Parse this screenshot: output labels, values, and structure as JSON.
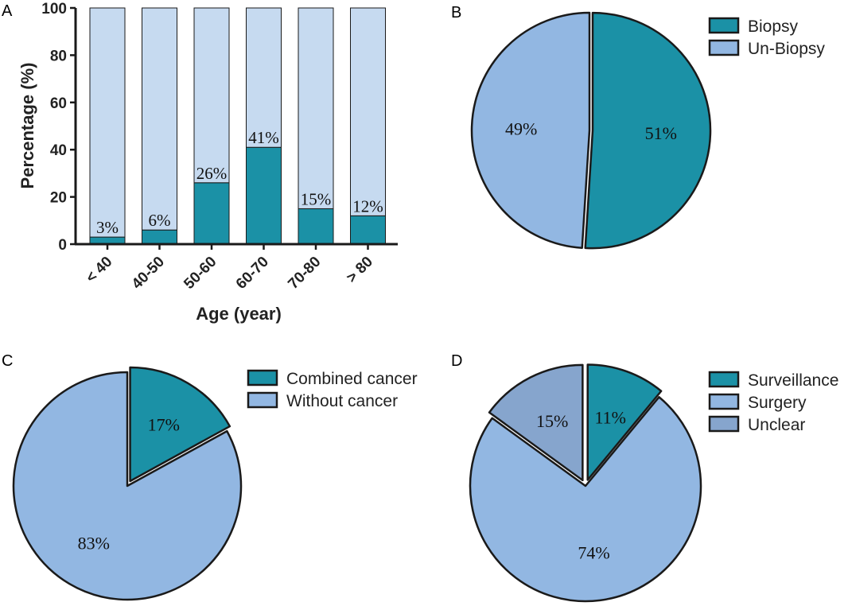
{
  "colors": {
    "teal": "#1b91a6",
    "lightbar": "#c6daf0",
    "lightblue": "#92b7e2",
    "greyblue": "#86a5cd",
    "stroke": "#1a1a1a"
  },
  "chart_data": [
    {
      "panel": "A",
      "type": "bar",
      "stacked": true,
      "categories": [
        "< 40",
        "40-50",
        "50-60",
        "60-70",
        "70-80",
        "> 80"
      ],
      "series": [
        {
          "name": "Biopsy",
          "values": [
            3,
            6,
            26,
            41,
            15,
            12
          ],
          "color": "#1b91a6"
        },
        {
          "name": "Remainder",
          "values": [
            97,
            94,
            74,
            59,
            85,
            88
          ],
          "color": "#c6daf0"
        }
      ],
      "data_labels": [
        "3%",
        "6%",
        "26%",
        "41%",
        "15%",
        "12%"
      ],
      "yticks": [
        0,
        20,
        40,
        60,
        80,
        100
      ],
      "ylim": [
        0,
        100
      ],
      "xlabel": "Age (year)",
      "ylabel": "Percentage (%)"
    },
    {
      "panel": "B",
      "type": "pie",
      "slices": [
        {
          "label": "Biopsy",
          "value": 51,
          "text": "51%",
          "color": "#1b91a6",
          "explode": true
        },
        {
          "label": "Un-Biopsy",
          "value": 49,
          "text": "49%",
          "color": "#92b7e2",
          "explode": false
        }
      ],
      "legend": [
        "Biopsy",
        "Un-Biopsy"
      ]
    },
    {
      "panel": "C",
      "type": "pie",
      "slices": [
        {
          "label": "Combined cancer",
          "value": 17,
          "text": "17%",
          "color": "#1b91a6",
          "explode": true
        },
        {
          "label": "Without cancer",
          "value": 83,
          "text": "83%",
          "color": "#92b7e2",
          "explode": false
        }
      ],
      "legend": [
        "Combined cancer",
        "Without cancer"
      ]
    },
    {
      "panel": "D",
      "type": "pie",
      "slices": [
        {
          "label": "Surveillance",
          "value": 11,
          "text": "11%",
          "color": "#1b91a6",
          "explode": true
        },
        {
          "label": "Surgery",
          "value": 74,
          "text": "74%",
          "color": "#92b7e2",
          "explode": false
        },
        {
          "label": "Unclear",
          "value": 15,
          "text": "15%",
          "color": "#86a5cd",
          "explode": true
        }
      ],
      "legend": [
        "Surveillance",
        "Surgery",
        "Unclear"
      ]
    }
  ]
}
